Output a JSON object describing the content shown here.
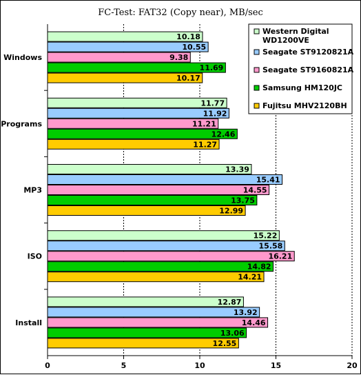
{
  "chart_data": {
    "type": "bar",
    "orientation": "horizontal",
    "title": "FC-Test: FAT32 (Copy near), MB/sec",
    "categories": [
      "Windows",
      "Programs",
      "MP3",
      "ISO",
      "Install"
    ],
    "series": [
      {
        "name": "Western Digital WD1200VE",
        "legend_lines": [
          "Western Digital",
          "WD1200VE"
        ],
        "color": "#ccffcc",
        "values": [
          10.18,
          11.77,
          13.39,
          15.22,
          12.87
        ]
      },
      {
        "name": "Seagate ST9120821A",
        "legend_lines": [
          "Seagate ST9120821A"
        ],
        "color": "#99ccff",
        "values": [
          10.55,
          11.92,
          15.41,
          15.58,
          13.92
        ]
      },
      {
        "name": "Seagate ST9160821A",
        "legend_lines": [
          "Seagate ST9160821A"
        ],
        "color": "#ff99cc",
        "values": [
          9.38,
          11.21,
          14.55,
          16.21,
          14.46
        ]
      },
      {
        "name": "Samsung HM120JC",
        "legend_lines": [
          "Samsung HM120JC"
        ],
        "color": "#00cc00",
        "values": [
          11.69,
          12.46,
          13.75,
          14.82,
          13.06
        ]
      },
      {
        "name": "Fujitsu MHV2120BH",
        "legend_lines": [
          "Fujitsu MHV2120BH"
        ],
        "color": "#ffcc00",
        "text_color": "#ff0000",
        "values": [
          10.17,
          11.27,
          12.99,
          14.21,
          12.55
        ]
      }
    ],
    "x_ticks": [
      "0",
      "5",
      "10",
      "15",
      "20"
    ],
    "xlim": [
      0,
      20
    ],
    "grid": "vertical dashed",
    "legend_position": "top-right",
    "value_labels": [
      [
        "10.18",
        "11.77",
        "13.39",
        "15.22",
        "12.87"
      ],
      [
        "10.55",
        "11.92",
        "15.41",
        "15.58",
        "13.92"
      ],
      [
        "9.38",
        "11.21",
        "14.55",
        "16.21",
        "14.46"
      ],
      [
        "11.69",
        "12.46",
        "13.75",
        "14.82",
        "13.06"
      ],
      [
        "10.17",
        "11.27",
        "12.99",
        "14.21",
        "12.55"
      ]
    ]
  }
}
